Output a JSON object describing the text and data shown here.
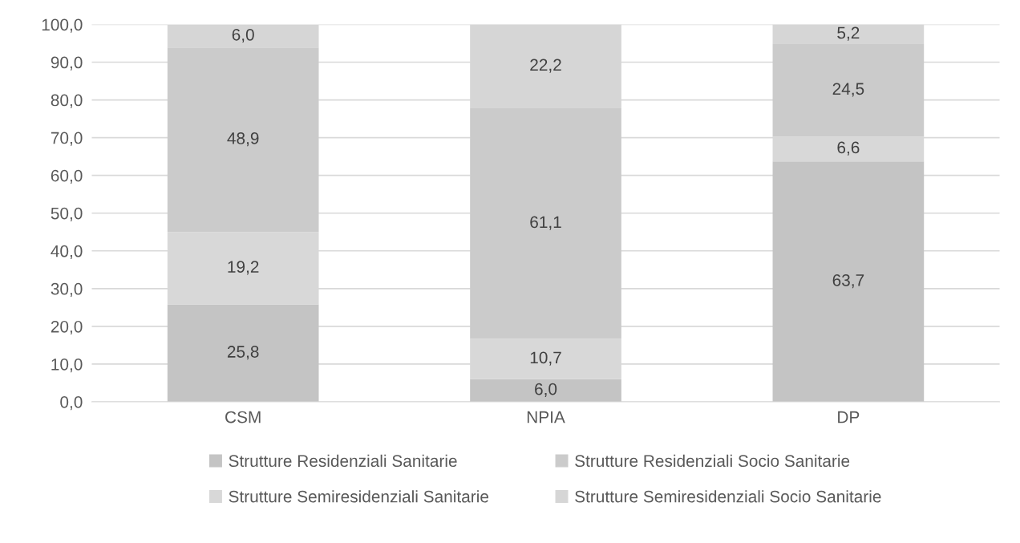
{
  "chart_data": {
    "type": "bar",
    "stacked": true,
    "categories": [
      "CSM",
      "NPIA",
      "DP"
    ],
    "series": [
      {
        "name": "Strutture Residenziali Sanitarie",
        "color": "#c4c4c4",
        "values": [
          25.8,
          6.0,
          63.7
        ],
        "value_labels": [
          "25,8",
          "6,0",
          "63,7"
        ]
      },
      {
        "name": "Strutture Semiresidenziali Sanitarie",
        "color": "#d8d8d8",
        "values": [
          19.2,
          10.7,
          6.6
        ],
        "value_labels": [
          "19,2",
          "10,7",
          "6,6"
        ]
      },
      {
        "name": "Strutture Residenziali Socio Sanitarie",
        "color": "#cbcbcb",
        "values": [
          48.9,
          61.1,
          24.5
        ],
        "value_labels": [
          "48,9",
          "61,1",
          "24,5"
        ]
      },
      {
        "name": "Strutture Semiresidenziali Socio Sanitarie",
        "color": "#d6d6d6",
        "values": [
          6.0,
          22.2,
          5.2
        ],
        "value_labels": [
          "6,0",
          "22,2",
          "5,2"
        ]
      }
    ],
    "ylim": [
      0,
      100
    ],
    "yticks": [
      {
        "value": 0,
        "label": "0,0"
      },
      {
        "value": 10,
        "label": "10,0"
      },
      {
        "value": 20,
        "label": "20,0"
      },
      {
        "value": 30,
        "label": "30,0"
      },
      {
        "value": 40,
        "label": "40,0"
      },
      {
        "value": 50,
        "label": "50,0"
      },
      {
        "value": 60,
        "label": "60,0"
      },
      {
        "value": 70,
        "label": "70,0"
      },
      {
        "value": 80,
        "label": "80,0"
      },
      {
        "value": 90,
        "label": "90,0"
      },
      {
        "value": 100,
        "label": "100,0"
      }
    ],
    "grid": "y",
    "legend": "bottom"
  }
}
